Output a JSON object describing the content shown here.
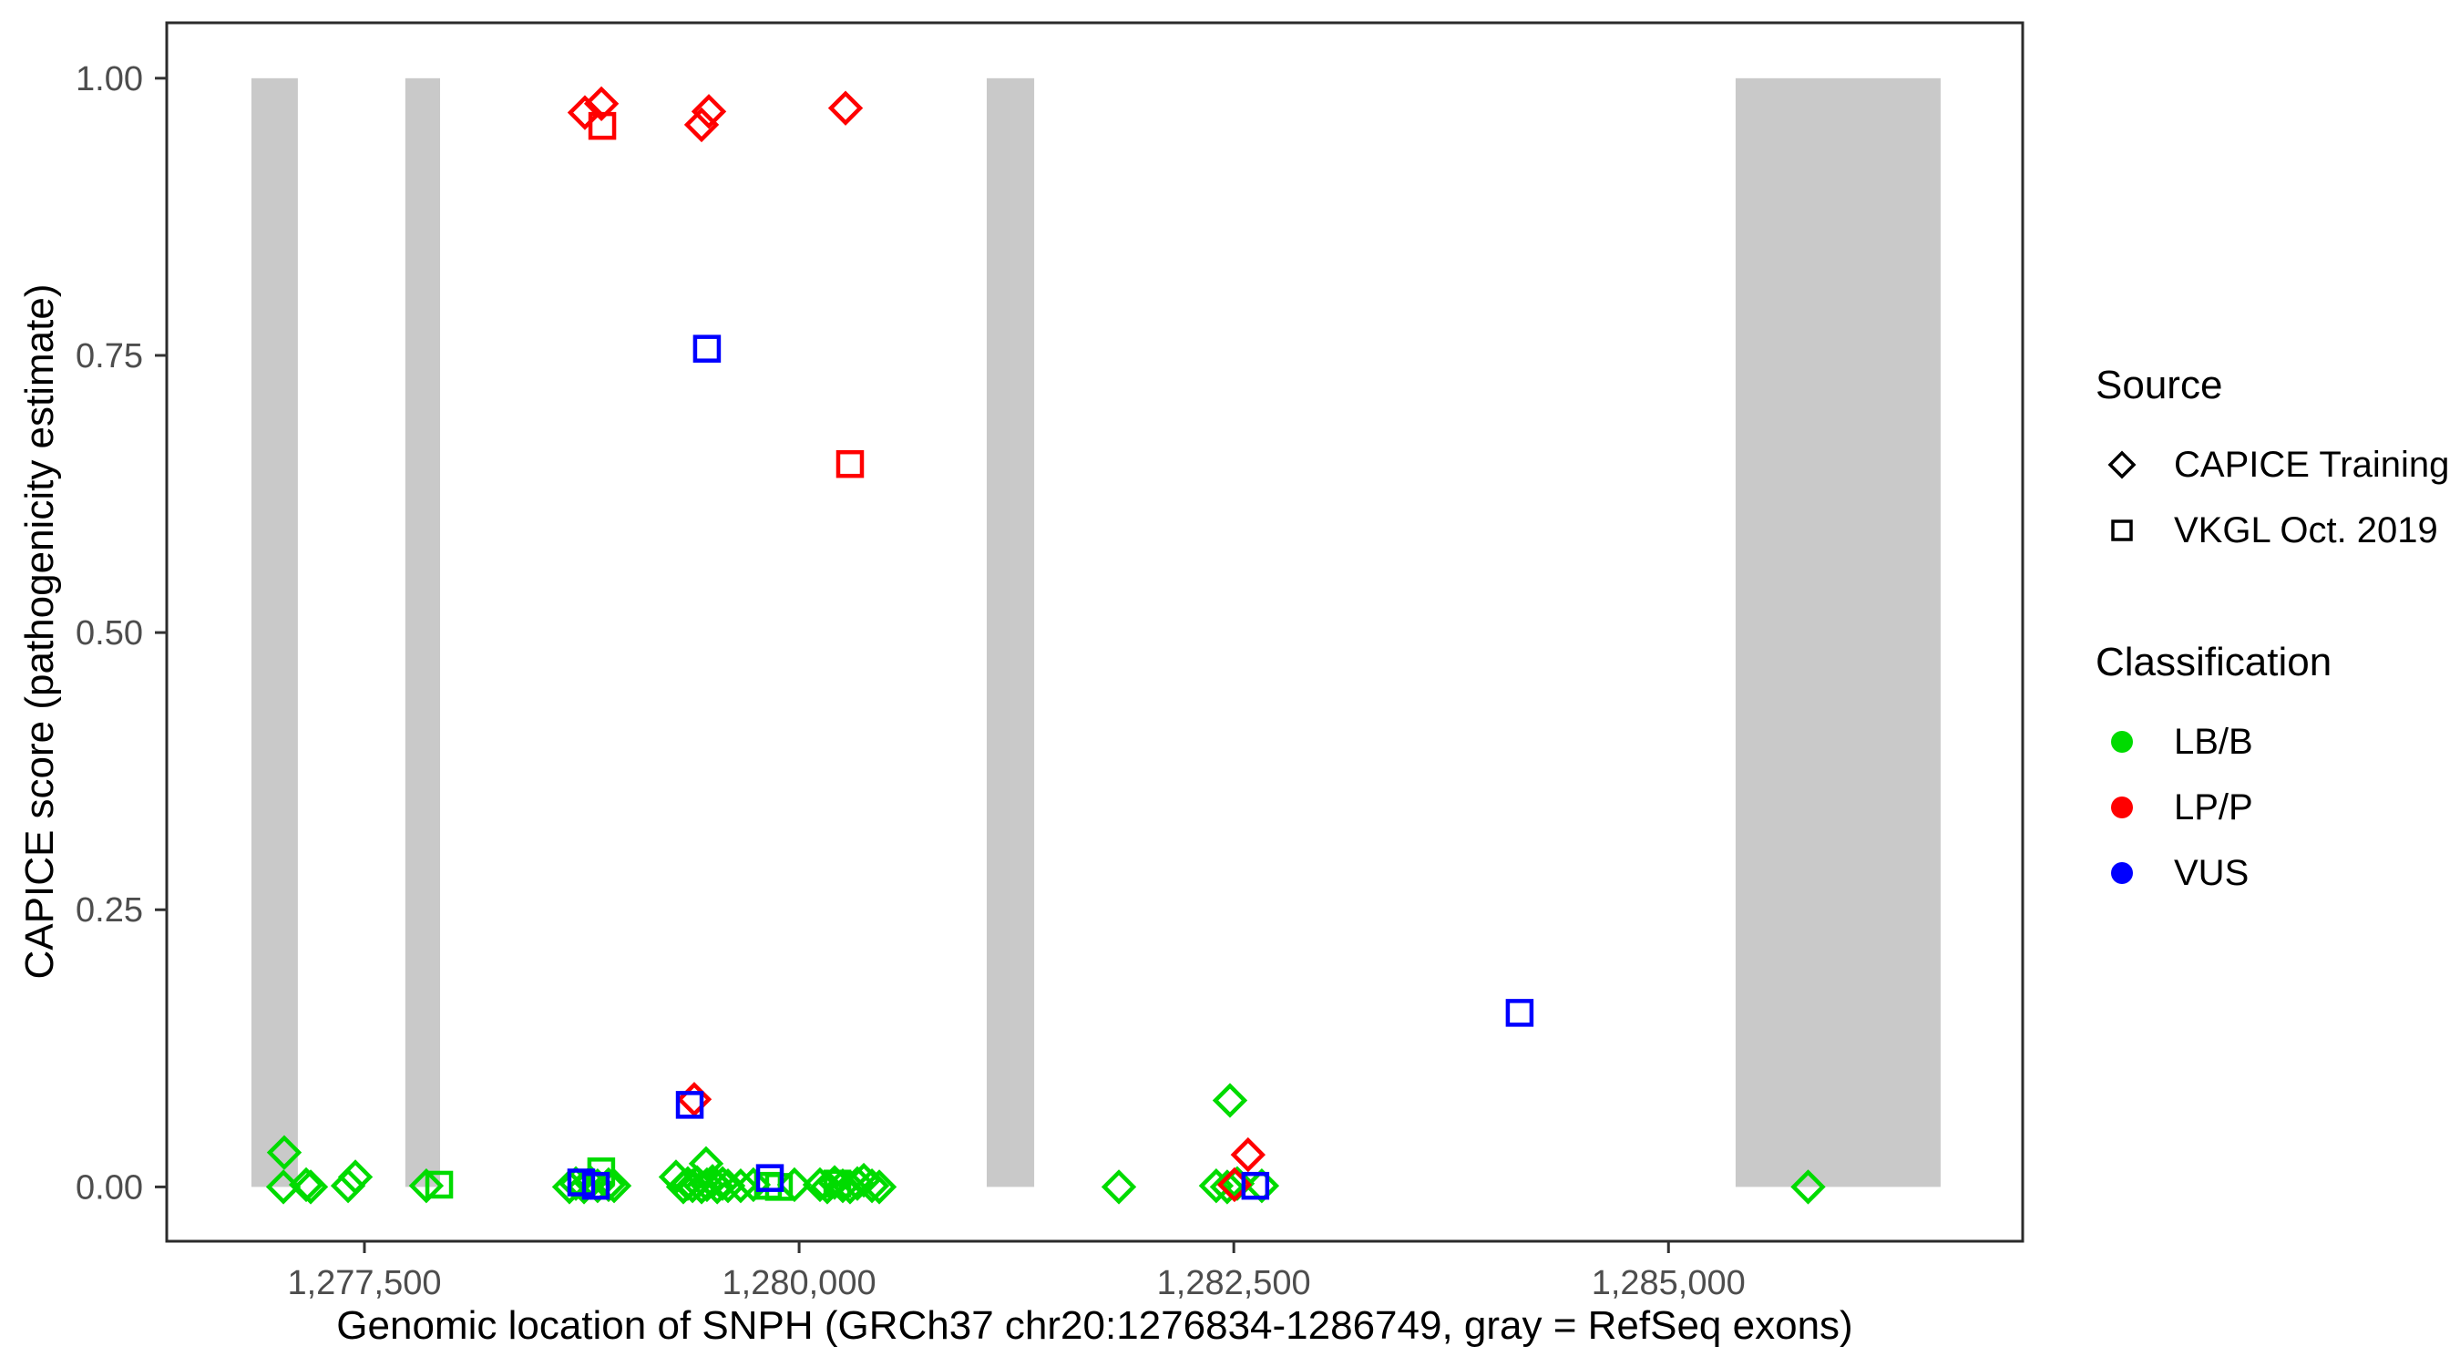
{
  "chart_data": {
    "type": "scatter",
    "title": "",
    "xlabel": "Genomic location of SNPH (GRCh37 chr20:1276834-1286749, gray = RefSeq exons)",
    "ylabel": "CAPICE score (pathogenicity estimate)",
    "xlim": [
      1276363,
      1287037
    ],
    "ylim": [
      -0.049,
      1.05
    ],
    "grid": "off",
    "legend_position": "right",
    "x_ticks": {
      "values": [
        1277500,
        1280000,
        1282500,
        1285000
      ],
      "labels": [
        "1,277,500",
        "1,280,000",
        "1,282,500",
        "1,285,000"
      ]
    },
    "y_ticks": {
      "values": [
        0.0,
        0.25,
        0.5,
        0.75,
        1.0
      ],
      "labels": [
        "0.00",
        "0.25",
        "0.50",
        "0.75",
        "1.00"
      ]
    },
    "exon_color": "#c9c9c9",
    "exons_bp": [
      [
        1276850,
        1277117
      ],
      [
        1277735,
        1277935
      ],
      [
        1281079,
        1281352
      ],
      [
        1285386,
        1286565
      ]
    ],
    "series": [
      {
        "name": "CAPICE Training / LB/B",
        "source": "CAPICE Training",
        "classification": "LB/B",
        "shape": "diamond",
        "color": "#00db00",
        "points": [
          [
            1277034,
            0.0
          ],
          [
            1277039,
            0.031
          ],
          [
            1277165,
            0.002
          ],
          [
            1277191,
            0.0
          ],
          [
            1277406,
            0.001
          ],
          [
            1277448,
            0.009
          ],
          [
            1277856,
            0.001
          ],
          [
            1278679,
            0.0
          ],
          [
            1278716,
            0.003
          ],
          [
            1278763,
            0.0
          ],
          [
            1278800,
            0.004
          ],
          [
            1278841,
            0.001
          ],
          [
            1278904,
            0.002
          ],
          [
            1278936,
            0.001
          ],
          [
            1279292,
            0.009
          ],
          [
            1279334,
            0.0
          ],
          [
            1279360,
            0.003
          ],
          [
            1279387,
            0.001
          ],
          [
            1279413,
            0.004
          ],
          [
            1279439,
            0.0
          ],
          [
            1279465,
            0.021
          ],
          [
            1279470,
            0.002
          ],
          [
            1279502,
            0.005
          ],
          [
            1279529,
            0.0
          ],
          [
            1279560,
            0.003
          ],
          [
            1279591,
            0.001
          ],
          [
            1279664,
            0.001
          ],
          [
            1279737,
            0.002
          ],
          [
            1279973,
            0.002
          ],
          [
            1280120,
            0.002
          ],
          [
            1280162,
            0.0
          ],
          [
            1280204,
            0.004
          ],
          [
            1280251,
            0.001
          ],
          [
            1280293,
            0.0
          ],
          [
            1280335,
            0.003
          ],
          [
            1280372,
            0.006
          ],
          [
            1280419,
            0.001
          ],
          [
            1280461,
            0.0
          ],
          [
            1281839,
            0.0
          ],
          [
            1282399,
            0.001
          ],
          [
            1282462,
            0.0
          ],
          [
            1282478,
            0.078
          ],
          [
            1282520,
            0.003
          ],
          [
            1282661,
            0.001
          ],
          [
            1285803,
            0.0
          ]
        ]
      },
      {
        "name": "VKGL Oct. 2019 / LB/B",
        "source": "VKGL Oct. 2019",
        "classification": "LB/B",
        "shape": "square",
        "color": "#00db00",
        "points": [
          [
            1278862,
            0.014
          ],
          [
            1277930,
            0.002
          ],
          [
            1279821,
            0.001
          ],
          [
            1279884,
            0.0
          ],
          [
            1280220,
            0.003
          ]
        ]
      },
      {
        "name": "CAPICE Training / LP/P",
        "source": "CAPICE Training",
        "classification": "LP/P",
        "shape": "diamond",
        "color": "#ff0000",
        "points": [
          [
            1278768,
            0.969
          ],
          [
            1278863,
            0.977
          ],
          [
            1279439,
            0.958
          ],
          [
            1279481,
            0.97
          ],
          [
            1280267,
            0.973
          ],
          [
            1279397,
            0.079
          ],
          [
            1282582,
            0.029
          ],
          [
            1282504,
            0.002
          ]
        ]
      },
      {
        "name": "VKGL Oct. 2019 / LP/P",
        "source": "VKGL Oct. 2019",
        "classification": "LP/P",
        "shape": "square",
        "color": "#ff0000",
        "points": [
          [
            1278868,
            0.957
          ],
          [
            1280293,
            0.652
          ]
        ]
      },
      {
        "name": "VKGL Oct. 2019 / VUS",
        "source": "VKGL Oct. 2019",
        "classification": "VUS",
        "shape": "square",
        "color": "#0000ff",
        "points": [
          [
            1279470,
            0.756
          ],
          [
            1284144,
            0.157
          ],
          [
            1279371,
            0.074
          ],
          [
            1278747,
            0.004
          ],
          [
            1278831,
            0.001
          ],
          [
            1279832,
            0.008
          ],
          [
            1282624,
            0.001
          ]
        ]
      }
    ]
  },
  "legend": {
    "source": {
      "title": "Source",
      "items": [
        {
          "label": "CAPICE Training",
          "shape": "diamond",
          "color": "#000000"
        },
        {
          "label": "VKGL Oct. 2019",
          "shape": "square",
          "color": "#000000"
        }
      ]
    },
    "classification": {
      "title": "Classification",
      "items": [
        {
          "label": "LB/B",
          "shape": "dot",
          "color": "#00db00"
        },
        {
          "label": "LP/P",
          "shape": "dot",
          "color": "#ff0000"
        },
        {
          "label": "VUS",
          "shape": "dot",
          "color": "#0000ff"
        }
      ]
    }
  }
}
